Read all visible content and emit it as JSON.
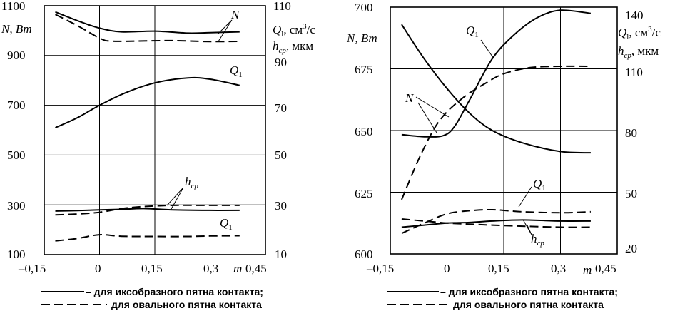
{
  "chart_data": [
    {
      "type": "line",
      "x_ticks": [
        "–0,15",
        "0",
        "0,15",
        "0,3",
        "0,45"
      ],
      "xlim": [
        -0.15,
        0.45
      ],
      "left_ticks": [
        "1100",
        "900",
        "700",
        "500",
        "300",
        "100"
      ],
      "left_ylim": [
        100,
        1100
      ],
      "right_ticks": [
        "110",
        "90",
        "70",
        "50",
        "30",
        "10"
      ],
      "right_ylim": [
        10,
        110
      ],
      "axis_labels": {
        "x": "m",
        "left": "N, Вт",
        "right_1": "Q",
        "right_1_sub": "l",
        "right_1_unit": ", см",
        "right_1_sup": "3",
        "right_1_tail": "/с",
        "right_2": "h",
        "right_2_sub": "cp",
        "right_2_unit": ", мкм"
      },
      "annotations": {
        "N": "N",
        "Q1_top": "Q",
        "Q1_top_sub": "1",
        "hcp": "h",
        "hcp_sub": "cp",
        "Q1_bottom": "Q",
        "Q1_bottom_sub": "1"
      },
      "series": [
        {
          "name": "N",
          "axis": "left",
          "style": "solid",
          "x": [
            -0.12,
            -0.06,
            0,
            0.06,
            0.15,
            0.24,
            0.3,
            0.38
          ],
          "y": [
            1075,
            1040,
            1010,
            995,
            998,
            990,
            992,
            995
          ]
        },
        {
          "name": "N",
          "axis": "left",
          "style": "dashed",
          "x": [
            -0.12,
            -0.06,
            0,
            0.03,
            0.1,
            0.2,
            0.3,
            0.38
          ],
          "y": [
            1065,
            1020,
            970,
            958,
            958,
            960,
            956,
            957
          ]
        },
        {
          "name": "Q1",
          "axis": "right",
          "style": "solid",
          "x": [
            -0.12,
            -0.06,
            0,
            0.07,
            0.15,
            0.24,
            0.3,
            0.38
          ],
          "y": [
            61,
            65,
            70,
            75,
            79,
            81,
            80.5,
            78
          ]
        },
        {
          "name": "hcp",
          "axis": "right",
          "style": "solid",
          "x": [
            -0.12,
            -0.06,
            0,
            0.06,
            0.12,
            0.2,
            0.3,
            0.38
          ],
          "y": [
            27.5,
            27.7,
            28,
            28.2,
            28.5,
            28,
            27.8,
            27.8
          ]
        },
        {
          "name": "hcp",
          "axis": "right",
          "style": "dashed",
          "x": [
            -0.12,
            -0.06,
            0,
            0.06,
            0.12,
            0.2,
            0.3,
            0.38
          ],
          "y": [
            26,
            26.3,
            27,
            28.5,
            29.3,
            29.8,
            29.8,
            29.8
          ]
        },
        {
          "name": "Q1",
          "axis": "right",
          "style": "dashed",
          "x": [
            -0.12,
            -0.06,
            0,
            0.06,
            0.15,
            0.24,
            0.3,
            0.38
          ],
          "y": [
            15.5,
            16.5,
            18,
            17.4,
            17.3,
            17.3,
            17.5,
            17.6
          ]
        }
      ]
    },
    {
      "type": "line",
      "x_ticks": [
        "–0,15",
        "0",
        "0,15",
        "0,3",
        "0,45"
      ],
      "xlim": [
        -0.15,
        0.45
      ],
      "left_ticks": [
        "700",
        "675",
        "650",
        "625",
        "600"
      ],
      "left_ylim": [
        600,
        700
      ],
      "right_ticks": [
        "140",
        "110",
        "80",
        "50",
        "20"
      ],
      "right_ylim": [
        20,
        140
      ],
      "axis_labels": {
        "x": "m",
        "left": "N, Вт",
        "right_1": "Q",
        "right_1_sub": "l",
        "right_1_unit": ", см",
        "right_1_sup": "3",
        "right_1_tail": "/с",
        "right_2": "h",
        "right_2_sub": "cp",
        "right_2_unit": ", мкм"
      },
      "annotations": {
        "N": "N",
        "Q1_top": "Q",
        "Q1_top_sub": "1",
        "hcp": "h",
        "hcp_sub": "cp",
        "Q1_bottom": "Q",
        "Q1_bottom_sub": "1"
      },
      "series": [
        {
          "name": "N",
          "axis": "left",
          "style": "solid",
          "x": [
            -0.12,
            -0.06,
            0,
            0.06,
            0.12,
            0.2,
            0.3,
            0.38
          ],
          "y": [
            693,
            679,
            667,
            657,
            650,
            645,
            641.5,
            641
          ]
        },
        {
          "name": "N",
          "axis": "left",
          "style": "dashed",
          "x": [
            -0.12,
            -0.07,
            -0.02,
            0.04,
            0.1,
            0.15,
            0.22,
            0.3,
            0.38
          ],
          "y": [
            622,
            640,
            654,
            663,
            669,
            673,
            675.5,
            676,
            676
          ]
        },
        {
          "name": "Q1",
          "axis": "right",
          "style": "solid",
          "x": [
            -0.12,
            -0.06,
            -0.01,
            0.02,
            0.06,
            0.12,
            0.18,
            0.24,
            0.3,
            0.38
          ],
          "y": [
            78,
            77,
            77.5,
            82,
            95,
            115,
            127,
            135,
            138.5,
            137
          ]
        },
        {
          "name": "Q1",
          "axis": "right",
          "style": "dashed",
          "x": [
            -0.12,
            -0.06,
            0,
            0.06,
            0.12,
            0.2,
            0.3,
            0.38
          ],
          "y": [
            30,
            35,
            39.5,
            41,
            41.5,
            40.5,
            40,
            40.5
          ]
        },
        {
          "name": "hcp",
          "axis": "right",
          "style": "solid",
          "x": [
            -0.12,
            -0.06,
            0,
            0.06,
            0.12,
            0.2,
            0.3,
            0.38
          ],
          "y": [
            33,
            34,
            35,
            35.3,
            36,
            36.5,
            36,
            36
          ]
        },
        {
          "name": "hcp",
          "axis": "right",
          "style": "dashed",
          "x": [
            -0.12,
            -0.06,
            0,
            0.06,
            0.12,
            0.2,
            0.3,
            0.38
          ],
          "y": [
            37,
            36,
            35,
            34.5,
            34,
            33.5,
            33,
            33
          ]
        }
      ]
    }
  ],
  "legend": [
    {
      "style": "solid",
      "label": "– для иксобразного пятна контакта;"
    },
    {
      "style": "dashed",
      "label": "для овального пятна контакта"
    }
  ]
}
